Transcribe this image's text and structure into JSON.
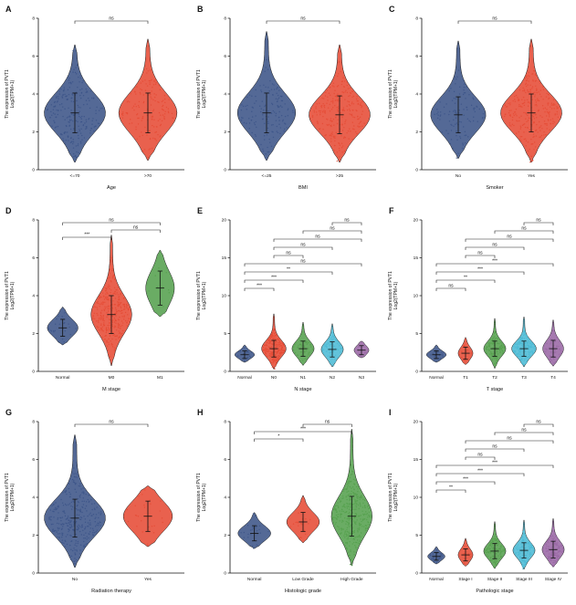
{
  "figure": {
    "ylabel_line1": "The expression of PVT1",
    "ylabel_line2": "Log2(TPM+1)"
  },
  "palette": [
    "#3C5488",
    "#E64B35",
    "#55A14E",
    "#4DBBD5",
    "#9A68A5"
  ],
  "chart_data": [
    {
      "type": "violin",
      "panel": "A",
      "xlabel": "Age",
      "ylim": [
        0,
        8
      ],
      "yticks": [
        0,
        2,
        4,
        6,
        8
      ],
      "categories": [
        "<=70",
        ">70"
      ],
      "groups": [
        {
          "label": "<=70",
          "mean": 3.0,
          "sd": 1.05,
          "min": 0.4,
          "max": 6.6,
          "n": 240,
          "width": 1
        },
        {
          "label": ">70",
          "mean": 3.0,
          "sd": 1.05,
          "min": 0.5,
          "max": 6.9,
          "n": 160,
          "width": 0.95
        }
      ],
      "comparisons": [
        [
          0,
          1,
          "ns"
        ]
      ]
    },
    {
      "type": "violin",
      "panel": "B",
      "xlabel": "BMI",
      "ylim": [
        0,
        8
      ],
      "yticks": [
        0,
        2,
        4,
        6,
        8
      ],
      "categories": [
        "<=25",
        ">25"
      ],
      "groups": [
        {
          "label": "<=25",
          "mean": 3.0,
          "sd": 1.05,
          "min": 0.5,
          "max": 7.3,
          "n": 150,
          "width": 0.95
        },
        {
          "label": ">25",
          "mean": 2.9,
          "sd": 1.0,
          "min": 0.4,
          "max": 6.6,
          "n": 250,
          "width": 1
        }
      ],
      "comparisons": [
        [
          0,
          1,
          "ns"
        ]
      ]
    },
    {
      "type": "violin",
      "panel": "C",
      "xlabel": "Smoker",
      "ylim": [
        0,
        8
      ],
      "yticks": [
        0,
        2,
        4,
        6,
        8
      ],
      "categories": [
        "No",
        "Yes"
      ],
      "groups": [
        {
          "label": "No",
          "mean": 2.9,
          "sd": 0.95,
          "min": 0.6,
          "max": 6.8,
          "n": 110,
          "width": 0.9
        },
        {
          "label": "Yes",
          "mean": 3.0,
          "sd": 1.0,
          "min": 0.4,
          "max": 6.9,
          "n": 280,
          "width": 1
        }
      ],
      "comparisons": [
        [
          0,
          1,
          "ns"
        ]
      ]
    },
    {
      "type": "violin",
      "panel": "D",
      "xlabel": "M stage",
      "ylim": [
        0,
        8
      ],
      "yticks": [
        0,
        2,
        4,
        6,
        8
      ],
      "categories": [
        "Normal",
        "M0",
        "M1"
      ],
      "groups": [
        {
          "label": "Normal",
          "mean": 2.3,
          "sd": 0.45,
          "min": 1.4,
          "max": 3.4,
          "n": 25,
          "width": 0.75
        },
        {
          "label": "M0",
          "mean": 3.0,
          "sd": 1.0,
          "min": 0.3,
          "max": 7.2,
          "n": 320,
          "width": 1
        },
        {
          "label": "M1",
          "mean": 4.4,
          "sd": 0.9,
          "min": 2.9,
          "max": 6.4,
          "n": 12,
          "width": 0.7
        }
      ],
      "comparisons": [
        [
          0,
          1,
          "***"
        ],
        [
          1,
          2,
          "ns"
        ],
        [
          0,
          2,
          "ns"
        ]
      ]
    },
    {
      "type": "violin",
      "panel": "E",
      "xlabel": "N stage",
      "ylim": [
        0,
        20
      ],
      "yticks": [
        0,
        5,
        10,
        15,
        20
      ],
      "categories": [
        "Normal",
        "N0",
        "N1",
        "N2",
        "N3"
      ],
      "groups": [
        {
          "label": "Normal",
          "mean": 2.2,
          "sd": 0.5,
          "min": 1.2,
          "max": 3.5,
          "n": 25,
          "width": 0.8
        },
        {
          "label": "N0",
          "mean": 3.0,
          "sd": 1.1,
          "min": 0.3,
          "max": 7.6,
          "n": 240,
          "width": 1
        },
        {
          "label": "N1",
          "mean": 3.0,
          "sd": 1.0,
          "min": 0.8,
          "max": 6.5,
          "n": 50,
          "width": 0.9
        },
        {
          "label": "N2",
          "mean": 2.9,
          "sd": 1.0,
          "min": 0.6,
          "max": 6.3,
          "n": 75,
          "width": 0.9
        },
        {
          "label": "N3",
          "mean": 2.8,
          "sd": 0.6,
          "min": 1.8,
          "max": 4.0,
          "n": 8,
          "width": 0.6
        }
      ],
      "comparisons": [
        [
          0,
          1,
          "***"
        ],
        [
          0,
          2,
          "***"
        ],
        [
          0,
          3,
          "**"
        ],
        [
          0,
          4,
          "ns"
        ],
        [
          1,
          2,
          "ns"
        ],
        [
          1,
          3,
          "ns"
        ],
        [
          1,
          4,
          "ns"
        ],
        [
          2,
          4,
          "ns"
        ],
        [
          3,
          4,
          "ns"
        ]
      ]
    },
    {
      "type": "violin",
      "panel": "F",
      "xlabel": "T stage",
      "ylim": [
        0,
        20
      ],
      "yticks": [
        0,
        5,
        10,
        15,
        20
      ],
      "categories": [
        "Normal",
        "T1",
        "T2",
        "T3",
        "T4"
      ],
      "groups": [
        {
          "label": "Normal",
          "mean": 2.2,
          "sd": 0.5,
          "min": 1.2,
          "max": 3.5,
          "n": 25,
          "width": 0.8
        },
        {
          "label": "T1",
          "mean": 2.4,
          "sd": 0.8,
          "min": 0.9,
          "max": 4.5,
          "n": 15,
          "width": 0.6
        },
        {
          "label": "T2",
          "mean": 3.0,
          "sd": 1.0,
          "min": 0.4,
          "max": 7.0,
          "n": 120,
          "width": 0.9
        },
        {
          "label": "T3",
          "mean": 3.0,
          "sd": 1.0,
          "min": 0.6,
          "max": 7.2,
          "n": 190,
          "width": 1
        },
        {
          "label": "T4",
          "mean": 3.0,
          "sd": 1.1,
          "min": 0.7,
          "max": 6.8,
          "n": 55,
          "width": 0.85
        }
      ],
      "comparisons": [
        [
          0,
          1,
          "ns"
        ],
        [
          0,
          2,
          "**"
        ],
        [
          0,
          3,
          "***"
        ],
        [
          0,
          4,
          "***"
        ],
        [
          1,
          2,
          "ns"
        ],
        [
          1,
          3,
          "ns"
        ],
        [
          1,
          4,
          "ns"
        ],
        [
          2,
          4,
          "ns"
        ],
        [
          3,
          4,
          "ns"
        ]
      ]
    },
    {
      "type": "violin",
      "panel": "G",
      "xlabel": "Radiation therapy",
      "ylim": [
        0,
        8
      ],
      "yticks": [
        0,
        2,
        4,
        6,
        8
      ],
      "categories": [
        "No",
        "Yes"
      ],
      "groups": [
        {
          "label": "No",
          "mean": 2.9,
          "sd": 1.0,
          "min": 0.3,
          "max": 7.3,
          "n": 330,
          "width": 1
        },
        {
          "label": "Yes",
          "mean": 3.0,
          "sd": 0.8,
          "min": 1.4,
          "max": 4.6,
          "n": 25,
          "width": 0.8
        }
      ],
      "comparisons": [
        [
          0,
          1,
          "ns"
        ]
      ]
    },
    {
      "type": "violin",
      "panel": "H",
      "xlabel": "Histologic grade",
      "ylim": [
        0,
        8
      ],
      "yticks": [
        0,
        2,
        4,
        6,
        8
      ],
      "categories": [
        "Normal",
        "Low Grade",
        "High Grade"
      ],
      "groups": [
        {
          "label": "Normal",
          "mean": 2.1,
          "sd": 0.4,
          "min": 1.3,
          "max": 3.2,
          "n": 25,
          "width": 0.8
        },
        {
          "label": "Low Grade",
          "mean": 2.7,
          "sd": 0.5,
          "min": 1.6,
          "max": 4.1,
          "n": 20,
          "width": 0.8
        },
        {
          "label": "High Grade",
          "mean": 3.0,
          "sd": 1.05,
          "min": 0.4,
          "max": 7.6,
          "n": 370,
          "width": 1
        }
      ],
      "comparisons": [
        [
          0,
          1,
          "*"
        ],
        [
          0,
          2,
          "***"
        ],
        [
          1,
          2,
          "ns"
        ]
      ]
    },
    {
      "type": "violin",
      "panel": "I",
      "xlabel": "Pathologic stage",
      "ylim": [
        0,
        20
      ],
      "yticks": [
        0,
        5,
        10,
        15,
        20
      ],
      "categories": [
        "Normal",
        "Stage I",
        "Stage II",
        "Stage III",
        "Stage IV"
      ],
      "groups": [
        {
          "label": "Normal",
          "mean": 2.2,
          "sd": 0.5,
          "min": 1.2,
          "max": 3.5,
          "n": 25,
          "width": 0.7
        },
        {
          "label": "Stage I",
          "mean": 2.4,
          "sd": 0.8,
          "min": 0.9,
          "max": 4.6,
          "n": 10,
          "width": 0.6
        },
        {
          "label": "Stage II",
          "mean": 2.9,
          "sd": 1.0,
          "min": 0.6,
          "max": 6.8,
          "n": 120,
          "width": 0.9
        },
        {
          "label": "Stage III",
          "mean": 3.0,
          "sd": 1.0,
          "min": 0.5,
          "max": 7.0,
          "n": 135,
          "width": 0.9
        },
        {
          "label": "Stage IV",
          "mean": 3.1,
          "sd": 1.1,
          "min": 0.8,
          "max": 7.2,
          "n": 130,
          "width": 0.9
        }
      ],
      "comparisons": [
        [
          0,
          1,
          "**"
        ],
        [
          0,
          2,
          "***"
        ],
        [
          0,
          3,
          "***"
        ],
        [
          0,
          4,
          "***"
        ],
        [
          1,
          2,
          "ns"
        ],
        [
          1,
          3,
          "ns"
        ],
        [
          1,
          4,
          "ns"
        ],
        [
          2,
          4,
          "ns"
        ],
        [
          3,
          4,
          "ns"
        ]
      ]
    }
  ]
}
